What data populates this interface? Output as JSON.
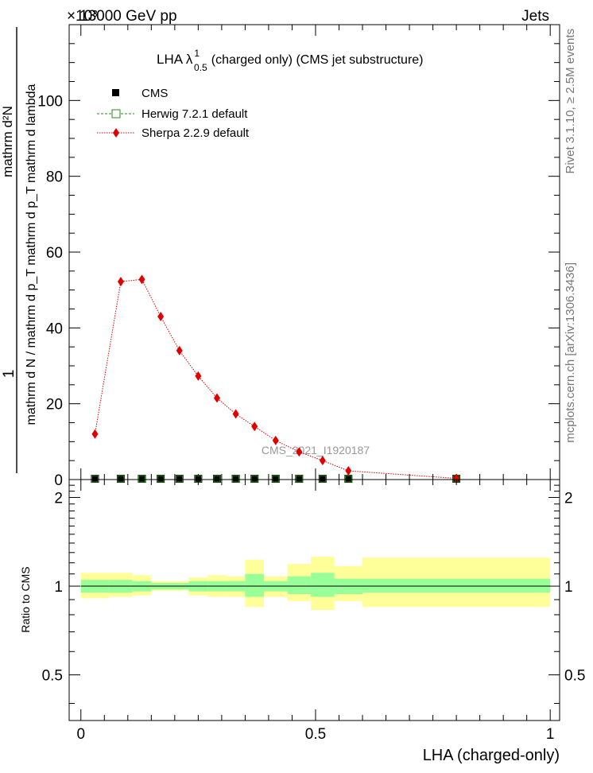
{
  "header": {
    "left": "13000 GeV pp",
    "right": "Jets",
    "exponent": "×10³",
    "side_right": "Rivet 3.1.10, ≥ 2.5M events",
    "side_right_lower": "mcplots.cern.ch [arXiv:1306.3436]"
  },
  "chart_data": [
    {
      "type": "line",
      "title": "LHA λ",
      "title_sup": "1",
      "title_sub": "0.5",
      "title_rest": "(charged only) (CMS jet substructure)",
      "ylabel_num": "mathrm d²N",
      "ylabel_den": "mathrm d N / mathrm d p_T mathrm d p_T mathrm d lambda",
      "ylabel_one": "1",
      "ylim": [
        0,
        120
      ],
      "yticks": [
        0,
        20,
        40,
        60,
        80,
        100
      ],
      "ytick_labels": [
        "0",
        "20",
        "40",
        "60",
        "80",
        "100"
      ],
      "xlim": [
        -0.025,
        1.02
      ],
      "watermark": "CMS_2021_I1920187",
      "legend": {
        "placement": "top-left",
        "entries": [
          "CMS",
          "Herwig 7.2.1 default",
          "Sherpa 2.2.9 default"
        ]
      },
      "series": [
        {
          "name": "CMS",
          "color": "#000000",
          "marker": "square",
          "x": [
            0.03,
            0.085,
            0.13,
            0.17,
            0.21,
            0.25,
            0.29,
            0.33,
            0.37,
            0.415,
            0.465,
            0.515,
            0.57,
            0.8
          ],
          "y": [
            0.2,
            0.2,
            0.2,
            0.2,
            0.2,
            0.2,
            0.2,
            0.2,
            0.2,
            0.2,
            0.2,
            0.2,
            0.2,
            0.2
          ]
        },
        {
          "name": "Herwig 7.2.1 default",
          "color": "#2a8a1a",
          "marker": "open-square",
          "x": [
            0.03,
            0.085,
            0.13,
            0.17,
            0.21,
            0.25,
            0.29,
            0.33,
            0.37,
            0.415,
            0.465,
            0.515,
            0.57,
            0.8
          ],
          "y": [
            0.2,
            0.2,
            0.2,
            0.2,
            0.2,
            0.2,
            0.2,
            0.2,
            0.2,
            0.2,
            0.2,
            0.2,
            0.2,
            0.2
          ]
        },
        {
          "name": "Sherpa 2.2.9 default",
          "color": "#e00000",
          "marker": "diamond",
          "x": [
            0.03,
            0.085,
            0.13,
            0.17,
            0.21,
            0.25,
            0.29,
            0.33,
            0.37,
            0.415,
            0.465,
            0.515,
            0.57,
            0.8
          ],
          "y": [
            12,
            52.2,
            52.8,
            43,
            34,
            27.3,
            21.5,
            17.3,
            14,
            10.3,
            7.3,
            5,
            2.3,
            0.3
          ]
        }
      ]
    },
    {
      "type": "area",
      "ylabel": "Ratio to CMS",
      "xlabel": "LHA (charged-only)",
      "ylim": [
        0.35,
        2.3
      ],
      "yticks": [
        0.5,
        1,
        2
      ],
      "ytick_labels": [
        "0.5",
        "1",
        "2"
      ],
      "xlim": [
        -0.025,
        1.02
      ],
      "xticks": [
        0,
        0.5,
        1
      ],
      "xtick_labels": [
        "0",
        "0.5",
        "1"
      ],
      "bins": [
        {
          "x0": 0.0,
          "x1": 0.06,
          "inner": [
            0.95,
            1.05
          ],
          "outer": [
            0.91,
            1.11
          ]
        },
        {
          "x0": 0.06,
          "x1": 0.11,
          "inner": [
            0.95,
            1.05
          ],
          "outer": [
            0.92,
            1.11
          ]
        },
        {
          "x0": 0.11,
          "x1": 0.15,
          "inner": [
            0.96,
            1.04
          ],
          "outer": [
            0.93,
            1.09
          ]
        },
        {
          "x0": 0.15,
          "x1": 0.19,
          "inner": [
            0.975,
            1.025
          ],
          "outer": [
            0.965,
            1.04
          ]
        },
        {
          "x0": 0.19,
          "x1": 0.23,
          "inner": [
            0.975,
            1.025
          ],
          "outer": [
            0.965,
            1.04
          ]
        },
        {
          "x0": 0.23,
          "x1": 0.27,
          "inner": [
            0.96,
            1.04
          ],
          "outer": [
            0.93,
            1.07
          ]
        },
        {
          "x0": 0.27,
          "x1": 0.31,
          "inner": [
            0.96,
            1.04
          ],
          "outer": [
            0.92,
            1.09
          ]
        },
        {
          "x0": 0.31,
          "x1": 0.35,
          "inner": [
            0.96,
            1.04
          ],
          "outer": [
            0.92,
            1.08
          ]
        },
        {
          "x0": 0.35,
          "x1": 0.39,
          "inner": [
            0.92,
            1.1
          ],
          "outer": [
            0.85,
            1.23
          ]
        },
        {
          "x0": 0.39,
          "x1": 0.44,
          "inner": [
            0.96,
            1.04
          ],
          "outer": [
            0.92,
            1.08
          ]
        },
        {
          "x0": 0.44,
          "x1": 0.49,
          "inner": [
            0.94,
            1.08
          ],
          "outer": [
            0.89,
            1.19
          ]
        },
        {
          "x0": 0.49,
          "x1": 0.54,
          "inner": [
            0.92,
            1.11
          ],
          "outer": [
            0.83,
            1.26
          ]
        },
        {
          "x0": 0.54,
          "x1": 0.6,
          "inner": [
            0.94,
            1.06
          ],
          "outer": [
            0.89,
            1.17
          ]
        },
        {
          "x0": 0.6,
          "x1": 1.0,
          "inner": [
            0.95,
            1.06
          ],
          "outer": [
            0.85,
            1.25
          ]
        }
      ],
      "ref": 1,
      "colors": {
        "inner": "#99ff99",
        "outer": "#ffff99"
      }
    }
  ]
}
